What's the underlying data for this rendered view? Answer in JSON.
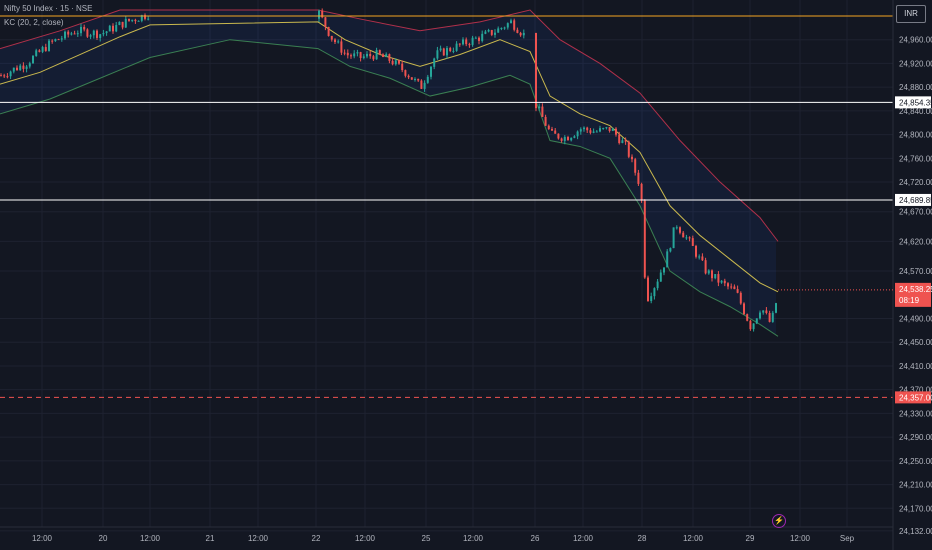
{
  "header": {
    "symbol_title": "Nifty 50 Index · 15 · NSE",
    "indicator_label": "KC (20, 2, close)",
    "currency": "INR"
  },
  "price_axis": {
    "ticks": [
      "24,960.00",
      "24,920.00",
      "24,880.00",
      "24,840.00",
      "24,800.00",
      "24,760.00",
      "24,720.00",
      "24,670.00",
      "24,620.00",
      "24,570.00",
      "24,490.00",
      "24,450.00",
      "24,410.00",
      "24,370.00",
      "24,330.00",
      "24,290.00",
      "24,250.00",
      "24,210.00",
      "24,170.00",
      "24,132.00"
    ]
  },
  "time_axis": {
    "ticks": [
      "12:00",
      "20",
      "12:00",
      "21",
      "12:00",
      "22",
      "12:00",
      "25",
      "12:00",
      "26",
      "12:00",
      "28",
      "12:00",
      "29",
      "12:00",
      "Sep"
    ]
  },
  "markers": {
    "level_high_label": "24,854.35",
    "level_mid_label": "24,689.85",
    "current_price_label": "24,538.25",
    "countdown_label": "08:19",
    "support_label": "24,357.00"
  },
  "colors": {
    "background": "#131722",
    "bull": "#26a69a",
    "bear": "#ef5350",
    "kc_mid": "#c9b84e",
    "kc_upper": "#b0304a",
    "kc_lower": "#3a7f52",
    "level_orange": "#f5a623",
    "level_white": "#ffffff",
    "support_dash": "#ef5350",
    "grid": "#1e2230"
  },
  "chart_data": {
    "type": "candlestick",
    "title": "Nifty 50 Index · 15 · NSE",
    "indicator": "KC (20, 2, close)",
    "ylim": [
      24120,
      25010
    ],
    "horizontal_levels": [
      {
        "price": 25000,
        "style": "solid",
        "color": "orange"
      },
      {
        "price": 24854.35,
        "style": "solid",
        "color": "white"
      },
      {
        "price": 24689.85,
        "style": "solid",
        "color": "white"
      },
      {
        "price": 24357.0,
        "style": "dashed",
        "color": "red"
      }
    ],
    "close_path": [
      [
        0,
        24900
      ],
      [
        25,
        24920
      ],
      [
        50,
        24955
      ],
      [
        75,
        24975
      ],
      [
        100,
        24970
      ],
      [
        125,
        24990
      ],
      [
        150,
        25005
      ],
      [
        318,
        25005
      ],
      [
        330,
        24965
      ],
      [
        345,
        24935
      ],
      [
        360,
        24930
      ],
      [
        375,
        24935
      ],
      [
        390,
        24925
      ],
      [
        405,
        24905
      ],
      [
        420,
        24880
      ],
      [
        435,
        24935
      ],
      [
        450,
        24945
      ],
      [
        465,
        24955
      ],
      [
        480,
        24965
      ],
      [
        495,
        24975
      ],
      [
        510,
        24990
      ],
      [
        525,
        24965
      ],
      [
        535,
        24850
      ],
      [
        550,
        24800
      ],
      [
        565,
        24795
      ],
      [
        580,
        24810
      ],
      [
        595,
        24805
      ],
      [
        610,
        24810
      ],
      [
        625,
        24780
      ],
      [
        640,
        24710
      ],
      [
        645,
        24520
      ],
      [
        655,
        24550
      ],
      [
        665,
        24590
      ],
      [
        675,
        24650
      ],
      [
        690,
        24615
      ],
      [
        705,
        24570
      ],
      [
        720,
        24550
      ],
      [
        735,
        24535
      ],
      [
        750,
        24475
      ],
      [
        760,
        24510
      ],
      [
        770,
        24480
      ],
      [
        778,
        24538
      ]
    ],
    "kc_mid_path": [
      [
        0,
        24885
      ],
      [
        40,
        24905
      ],
      [
        80,
        24935
      ],
      [
        120,
        24965
      ],
      [
        150,
        24985
      ],
      [
        318,
        24990
      ],
      [
        345,
        24960
      ],
      [
        380,
        24935
      ],
      [
        420,
        24915
      ],
      [
        460,
        24935
      ],
      [
        500,
        24960
      ],
      [
        530,
        24940
      ],
      [
        550,
        24865
      ],
      [
        580,
        24835
      ],
      [
        610,
        24815
      ],
      [
        640,
        24770
      ],
      [
        670,
        24680
      ],
      [
        700,
        24630
      ],
      [
        730,
        24590
      ],
      [
        760,
        24550
      ],
      [
        778,
        24535
      ]
    ],
    "kc_upper_path": [
      [
        0,
        24945
      ],
      [
        60,
        24975
      ],
      [
        120,
        25010
      ],
      [
        318,
        25010
      ],
      [
        360,
        24995
      ],
      [
        420,
        24975
      ],
      [
        480,
        24990
      ],
      [
        530,
        25010
      ],
      [
        560,
        24960
      ],
      [
        600,
        24920
      ],
      [
        640,
        24870
      ],
      [
        680,
        24790
      ],
      [
        720,
        24720
      ],
      [
        760,
        24660
      ],
      [
        778,
        24620
      ]
    ],
    "kc_lower_path": [
      [
        0,
        24835
      ],
      [
        50,
        24860
      ],
      [
        100,
        24895
      ],
      [
        150,
        24930
      ],
      [
        230,
        24960
      ],
      [
        318,
        24945
      ],
      [
        350,
        24915
      ],
      [
        390,
        24895
      ],
      [
        430,
        24865
      ],
      [
        470,
        24880
      ],
      [
        510,
        24900
      ],
      [
        530,
        24885
      ],
      [
        550,
        24790
      ],
      [
        580,
        24780
      ],
      [
        610,
        24760
      ],
      [
        640,
        24680
      ],
      [
        670,
        24570
      ],
      [
        700,
        24535
      ],
      [
        730,
        24510
      ],
      [
        760,
        24480
      ],
      [
        778,
        24460
      ]
    ]
  }
}
